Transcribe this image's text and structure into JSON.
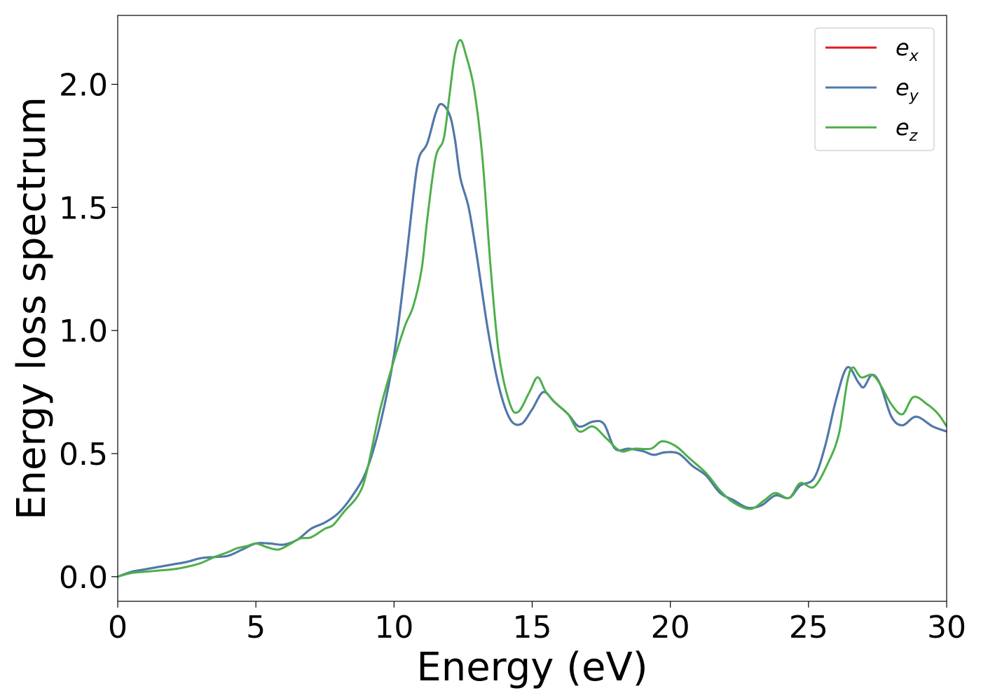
{
  "chart_data": {
    "type": "line",
    "xlabel": "Energy (eV)",
    "ylabel": "Energy loss spectrum",
    "xlim": [
      0,
      30
    ],
    "ylim": [
      -0.1,
      2.28
    ],
    "xticks": [
      0,
      5,
      10,
      15,
      20,
      25,
      30
    ],
    "xtick_labels": [
      "0",
      "5",
      "10",
      "15",
      "20",
      "25",
      "30"
    ],
    "yticks": [
      0.0,
      0.5,
      1.0,
      1.5,
      2.0
    ],
    "ytick_labels": [
      "0.0",
      "0.5",
      "1.0",
      "1.5",
      "2.0"
    ],
    "grid": false,
    "legend_position": "top-right",
    "series": [
      {
        "name": "e_x",
        "label_base": "e",
        "label_sub": "x",
        "color": "#e41a1c",
        "points": [
          [
            0,
            0.0
          ],
          [
            0.5,
            0.02
          ],
          [
            1.0,
            0.03
          ],
          [
            1.5,
            0.04
          ],
          [
            2.0,
            0.05
          ],
          [
            2.5,
            0.06
          ],
          [
            3.0,
            0.075
          ],
          [
            3.5,
            0.08
          ],
          [
            4.0,
            0.085
          ],
          [
            4.5,
            0.11
          ],
          [
            5.0,
            0.135
          ],
          [
            5.5,
            0.135
          ],
          [
            6.0,
            0.13
          ],
          [
            6.5,
            0.15
          ],
          [
            7.0,
            0.195
          ],
          [
            7.5,
            0.22
          ],
          [
            8.0,
            0.26
          ],
          [
            8.5,
            0.33
          ],
          [
            9.0,
            0.43
          ],
          [
            9.5,
            0.62
          ],
          [
            10.0,
            0.9
          ],
          [
            10.4,
            1.25
          ],
          [
            10.7,
            1.55
          ],
          [
            10.9,
            1.7
          ],
          [
            11.2,
            1.76
          ],
          [
            11.5,
            1.88
          ],
          [
            11.7,
            1.92
          ],
          [
            12.0,
            1.88
          ],
          [
            12.2,
            1.78
          ],
          [
            12.4,
            1.62
          ],
          [
            12.7,
            1.5
          ],
          [
            13.0,
            1.3
          ],
          [
            13.4,
            1.0
          ],
          [
            13.8,
            0.77
          ],
          [
            14.2,
            0.64
          ],
          [
            14.6,
            0.62
          ],
          [
            15.0,
            0.68
          ],
          [
            15.4,
            0.75
          ],
          [
            15.8,
            0.71
          ],
          [
            16.3,
            0.66
          ],
          [
            16.7,
            0.61
          ],
          [
            17.2,
            0.63
          ],
          [
            17.6,
            0.62
          ],
          [
            18.0,
            0.52
          ],
          [
            18.5,
            0.52
          ],
          [
            19.0,
            0.51
          ],
          [
            19.4,
            0.495
          ],
          [
            19.8,
            0.505
          ],
          [
            20.3,
            0.5
          ],
          [
            20.8,
            0.45
          ],
          [
            21.3,
            0.41
          ],
          [
            21.8,
            0.34
          ],
          [
            22.3,
            0.31
          ],
          [
            22.8,
            0.28
          ],
          [
            23.3,
            0.29
          ],
          [
            23.8,
            0.33
          ],
          [
            24.3,
            0.32
          ],
          [
            24.7,
            0.37
          ],
          [
            25.2,
            0.4
          ],
          [
            25.6,
            0.53
          ],
          [
            26.0,
            0.72
          ],
          [
            26.4,
            0.85
          ],
          [
            26.8,
            0.79
          ],
          [
            27.0,
            0.77
          ],
          [
            27.3,
            0.82
          ],
          [
            27.6,
            0.78
          ],
          [
            28.0,
            0.65
          ],
          [
            28.4,
            0.615
          ],
          [
            28.9,
            0.65
          ],
          [
            29.5,
            0.61
          ],
          [
            30.0,
            0.59
          ]
        ]
      },
      {
        "name": "e_y",
        "label_base": "e",
        "label_sub": "y",
        "color": "#4a7bb0",
        "points": [
          [
            0,
            0.0
          ],
          [
            0.5,
            0.02
          ],
          [
            1.0,
            0.03
          ],
          [
            1.5,
            0.04
          ],
          [
            2.0,
            0.05
          ],
          [
            2.5,
            0.06
          ],
          [
            3.0,
            0.075
          ],
          [
            3.5,
            0.08
          ],
          [
            4.0,
            0.085
          ],
          [
            4.5,
            0.11
          ],
          [
            5.0,
            0.135
          ],
          [
            5.5,
            0.135
          ],
          [
            6.0,
            0.13
          ],
          [
            6.5,
            0.15
          ],
          [
            7.0,
            0.195
          ],
          [
            7.5,
            0.22
          ],
          [
            8.0,
            0.26
          ],
          [
            8.5,
            0.33
          ],
          [
            9.0,
            0.43
          ],
          [
            9.5,
            0.62
          ],
          [
            10.0,
            0.9
          ],
          [
            10.4,
            1.25
          ],
          [
            10.7,
            1.55
          ],
          [
            10.9,
            1.7
          ],
          [
            11.2,
            1.76
          ],
          [
            11.5,
            1.88
          ],
          [
            11.7,
            1.92
          ],
          [
            12.0,
            1.88
          ],
          [
            12.2,
            1.78
          ],
          [
            12.4,
            1.62
          ],
          [
            12.7,
            1.5
          ],
          [
            13.0,
            1.3
          ],
          [
            13.4,
            1.0
          ],
          [
            13.8,
            0.77
          ],
          [
            14.2,
            0.64
          ],
          [
            14.6,
            0.62
          ],
          [
            15.0,
            0.68
          ],
          [
            15.4,
            0.75
          ],
          [
            15.8,
            0.71
          ],
          [
            16.3,
            0.66
          ],
          [
            16.7,
            0.61
          ],
          [
            17.2,
            0.63
          ],
          [
            17.6,
            0.62
          ],
          [
            18.0,
            0.52
          ],
          [
            18.5,
            0.52
          ],
          [
            19.0,
            0.51
          ],
          [
            19.4,
            0.495
          ],
          [
            19.8,
            0.505
          ],
          [
            20.3,
            0.5
          ],
          [
            20.8,
            0.45
          ],
          [
            21.3,
            0.41
          ],
          [
            21.8,
            0.34
          ],
          [
            22.3,
            0.31
          ],
          [
            22.8,
            0.28
          ],
          [
            23.3,
            0.29
          ],
          [
            23.8,
            0.33
          ],
          [
            24.3,
            0.32
          ],
          [
            24.7,
            0.37
          ],
          [
            25.2,
            0.4
          ],
          [
            25.6,
            0.53
          ],
          [
            26.0,
            0.72
          ],
          [
            26.4,
            0.85
          ],
          [
            26.8,
            0.79
          ],
          [
            27.0,
            0.77
          ],
          [
            27.3,
            0.82
          ],
          [
            27.6,
            0.78
          ],
          [
            28.0,
            0.65
          ],
          [
            28.4,
            0.615
          ],
          [
            28.9,
            0.65
          ],
          [
            29.5,
            0.61
          ],
          [
            30.0,
            0.59
          ]
        ]
      },
      {
        "name": "e_z",
        "label_base": "e",
        "label_sub": "z",
        "color": "#4daf4a",
        "points": [
          [
            0,
            0.0
          ],
          [
            0.5,
            0.015
          ],
          [
            1.0,
            0.02
          ],
          [
            1.5,
            0.025
          ],
          [
            2.0,
            0.03
          ],
          [
            2.5,
            0.04
          ],
          [
            3.0,
            0.055
          ],
          [
            3.5,
            0.08
          ],
          [
            4.0,
            0.1
          ],
          [
            4.3,
            0.115
          ],
          [
            4.7,
            0.125
          ],
          [
            5.0,
            0.135
          ],
          [
            5.4,
            0.12
          ],
          [
            5.8,
            0.11
          ],
          [
            6.2,
            0.13
          ],
          [
            6.6,
            0.155
          ],
          [
            7.0,
            0.16
          ],
          [
            7.5,
            0.195
          ],
          [
            7.8,
            0.21
          ],
          [
            8.2,
            0.265
          ],
          [
            8.7,
            0.33
          ],
          [
            9.0,
            0.42
          ],
          [
            9.5,
            0.68
          ],
          [
            10.0,
            0.88
          ],
          [
            10.4,
            1.02
          ],
          [
            10.7,
            1.1
          ],
          [
            11.0,
            1.25
          ],
          [
            11.2,
            1.45
          ],
          [
            11.5,
            1.7
          ],
          [
            11.8,
            1.78
          ],
          [
            12.0,
            1.95
          ],
          [
            12.2,
            2.12
          ],
          [
            12.4,
            2.18
          ],
          [
            12.6,
            2.12
          ],
          [
            12.9,
            1.98
          ],
          [
            13.2,
            1.7
          ],
          [
            13.5,
            1.25
          ],
          [
            13.8,
            0.9
          ],
          [
            14.2,
            0.7
          ],
          [
            14.5,
            0.67
          ],
          [
            14.9,
            0.75
          ],
          [
            15.2,
            0.81
          ],
          [
            15.5,
            0.75
          ],
          [
            15.9,
            0.7
          ],
          [
            16.3,
            0.66
          ],
          [
            16.7,
            0.59
          ],
          [
            17.2,
            0.61
          ],
          [
            17.7,
            0.56
          ],
          [
            18.2,
            0.51
          ],
          [
            18.7,
            0.52
          ],
          [
            19.3,
            0.52
          ],
          [
            19.7,
            0.55
          ],
          [
            20.2,
            0.53
          ],
          [
            20.7,
            0.48
          ],
          [
            21.3,
            0.42
          ],
          [
            21.8,
            0.35
          ],
          [
            22.3,
            0.3
          ],
          [
            22.9,
            0.275
          ],
          [
            23.4,
            0.31
          ],
          [
            23.8,
            0.34
          ],
          [
            24.3,
            0.32
          ],
          [
            24.7,
            0.38
          ],
          [
            25.2,
            0.365
          ],
          [
            25.7,
            0.46
          ],
          [
            26.1,
            0.58
          ],
          [
            26.4,
            0.79
          ],
          [
            26.6,
            0.85
          ],
          [
            26.9,
            0.81
          ],
          [
            27.3,
            0.82
          ],
          [
            27.6,
            0.78
          ],
          [
            28.0,
            0.7
          ],
          [
            28.4,
            0.66
          ],
          [
            28.8,
            0.73
          ],
          [
            29.3,
            0.7
          ],
          [
            29.7,
            0.66
          ],
          [
            30.0,
            0.61
          ]
        ]
      }
    ]
  }
}
